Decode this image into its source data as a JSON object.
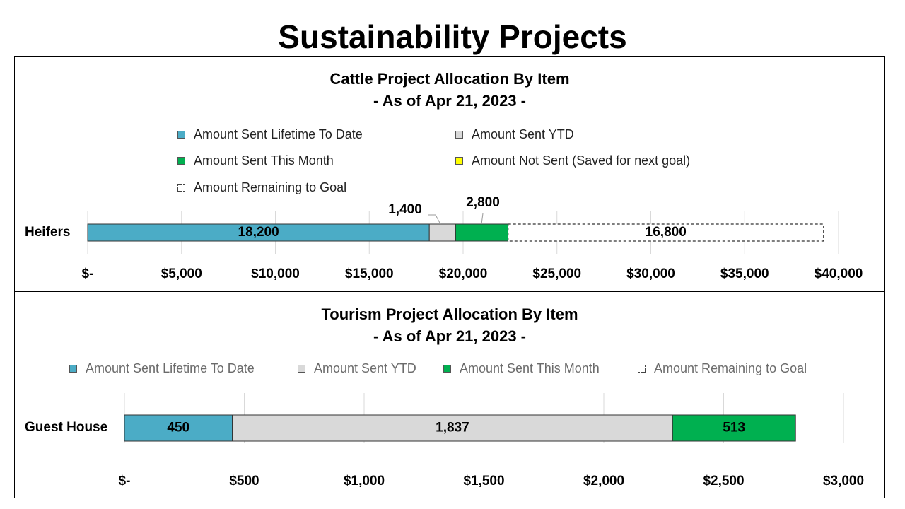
{
  "page_title": "Sustainability Projects",
  "chart_data": [
    {
      "type": "bar",
      "orientation": "horizontal",
      "stacked": true,
      "title": "Cattle Project Allocation By Item",
      "subtitle": "- As of Apr 21, 2023 -",
      "categories": [
        "Heifers"
      ],
      "series": [
        {
          "name": "Amount Sent Lifetime To Date",
          "values": [
            18200
          ],
          "label": "18,200",
          "color": "#4bacc6"
        },
        {
          "name": "Amount Sent YTD",
          "values": [
            1400
          ],
          "label": "1,400",
          "color": "#d9d9d9"
        },
        {
          "name": "Amount Sent This Month",
          "values": [
            2800
          ],
          "label": "2,800",
          "color": "#00b050"
        },
        {
          "name": "Amount Not Sent (Saved for next goal)",
          "values": [
            0
          ],
          "label": "",
          "color": "#ffff00"
        },
        {
          "name": "Amount Remaining to Goal",
          "values": [
            16800
          ],
          "label": "16,800",
          "color": "dashed"
        }
      ],
      "xlim": [
        0,
        40000
      ],
      "ticks": [
        0,
        5000,
        10000,
        15000,
        20000,
        25000,
        30000,
        35000,
        40000
      ],
      "tick_labels": [
        "$-",
        "$5,000",
        "$10,000",
        "$15,000",
        "$20,000",
        "$25,000",
        "$30,000",
        "$35,000",
        "$40,000"
      ],
      "legend_position": "top",
      "grid": true
    },
    {
      "type": "bar",
      "orientation": "horizontal",
      "stacked": true,
      "title": "Tourism Project Allocation By Item",
      "subtitle": "- As of Apr 21, 2023 -",
      "categories": [
        "Guest House"
      ],
      "series": [
        {
          "name": "Amount Sent Lifetime To Date",
          "values": [
            450
          ],
          "label": "450",
          "color": "#4bacc6"
        },
        {
          "name": "Amount Sent YTD",
          "values": [
            1837
          ],
          "label": "1,837",
          "color": "#d9d9d9"
        },
        {
          "name": "Amount Sent This Month",
          "values": [
            513
          ],
          "label": "513",
          "color": "#00b050"
        },
        {
          "name": "Amount Remaining to Goal",
          "values": [
            0
          ],
          "label": "",
          "color": "dashed"
        }
      ],
      "xlim": [
        0,
        3000
      ],
      "ticks": [
        0,
        500,
        1000,
        1500,
        2000,
        2500,
        3000
      ],
      "tick_labels": [
        "$-",
        "$500",
        "$1,000",
        "$1,500",
        "$2,000",
        "$2,500",
        "$3,000"
      ],
      "legend_position": "top",
      "grid": true
    }
  ]
}
